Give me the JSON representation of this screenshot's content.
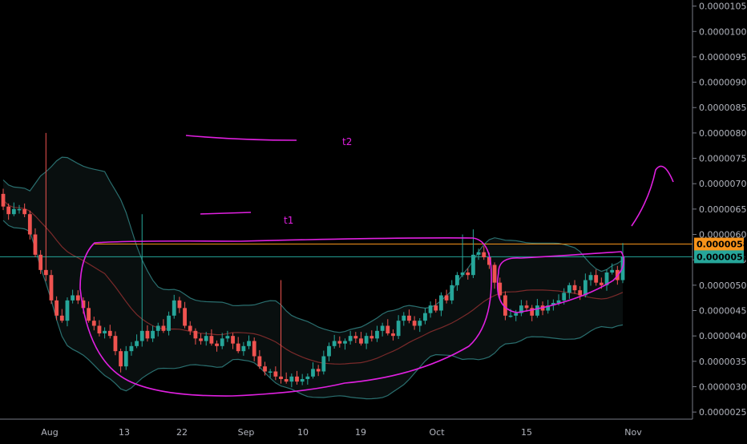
{
  "chart_data": {
    "type": "candlestick",
    "x_tick_labels": [
      "Aug",
      "13",
      "22",
      "Sep",
      "10",
      "19",
      "Oct",
      "15",
      "Nov"
    ],
    "y_tick_labels": [
      "0.00001050",
      "0.00001000",
      "0.00000950",
      "0.00000900",
      "0.00000850",
      "0.00000800",
      "0.00000750",
      "0.00000700",
      "0.00000650",
      "0.00000600",
      "0.00000550",
      "0.00000500",
      "0.00000450",
      "0.00000400",
      "0.00000350",
      "0.00000300",
      "0.00000250"
    ],
    "ylim": [
      2.36e-06,
      1.062e-05
    ],
    "price_lines": [
      {
        "value": 5.81e-06,
        "label": "0.00000581",
        "color": "#f7931a"
      },
      {
        "value": 5.56e-06,
        "label": "0.00000556",
        "color": "#26a69a"
      }
    ],
    "annotations": [
      {
        "text": "t2",
        "color": "#e020e0"
      },
      {
        "text": "t1",
        "color": "#e020e0"
      }
    ],
    "candles": {
      "open": [
        6.8e-06,
        6.55e-06,
        6.4e-06,
        6.5e-06,
        6.5e-06,
        6.4e-06,
        6e-06,
        5.6e-06,
        5.3e-06,
        5.2e-06,
        4.7e-06,
        4.4e-06,
        4.3e-06,
        4.7e-06,
        4.8e-06,
        4.7e-06,
        4.55e-06,
        4.3e-06,
        4.2e-06,
        4.05e-06,
        4.1e-06,
        4e-06,
        3.7e-06,
        3.4e-06,
        3.7e-06,
        3.8e-06,
        3.9e-06,
        4.1e-06,
        3.95e-06,
        4.1e-06,
        4.2e-06,
        4.1e-06,
        4.4e-06,
        4.7e-06,
        4.55e-06,
        4.2e-06,
        4.1e-06,
        3.95e-06,
        3.9e-06,
        4e-06,
        3.85e-06,
        3.8e-06,
        3.95e-06,
        4e-06,
        3.85e-06,
        3.7e-06,
        3.8e-06,
        3.9e-06,
        3.6e-06,
        3.4e-06,
        3.3e-06,
        3.3e-06,
        3.2e-06,
        3.15e-06,
        3.1e-06,
        3.2e-06,
        3.1e-06,
        3.15e-06,
        3.2e-06,
        3.35e-06,
        3.3e-06,
        3.6e-06,
        3.8e-06,
        3.9e-06,
        3.85e-06,
        3.9e-06,
        4e-06,
        3.95e-06,
        3.85e-06,
        4e-06,
        3.95e-06,
        4.1e-06,
        4.2e-06,
        4.05e-06,
        4e-06,
        4.3e-06,
        4.4e-06,
        4.3e-06,
        4.2e-06,
        4.3e-06,
        4.45e-06,
        4.6e-06,
        4.5e-06,
        4.8e-06,
        4.7e-06,
        5e-06,
        5.2e-06,
        5.25e-06,
        5.2e-06,
        5.6e-06,
        5.65e-06,
        5.55e-06,
        5.4e-06,
        5.05e-06,
        4.8e-06,
        4.4e-06,
        4.4e-06,
        4.45e-06,
        4.6e-06,
        4.55e-06,
        4.4e-06,
        4.6e-06,
        4.5e-06,
        4.6e-06,
        4.65e-06,
        4.7e-06,
        4.85e-06,
        5e-06,
        4.9e-06,
        4.8e-06,
        5.1e-06,
        5.2e-06,
        5.05e-06,
        5e-06,
        5.25e-06,
        5.3e-06,
        5.1e-06
      ],
      "close": [
        6.55e-06,
        6.4e-06,
        6.5e-06,
        6.5e-06,
        6.4e-06,
        6e-06,
        5.6e-06,
        5.3e-06,
        5.2e-06,
        4.7e-06,
        4.4e-06,
        4.3e-06,
        4.7e-06,
        4.8e-06,
        4.7e-06,
        4.55e-06,
        4.3e-06,
        4.2e-06,
        4.05e-06,
        4.1e-06,
        4e-06,
        3.7e-06,
        3.4e-06,
        3.7e-06,
        3.8e-06,
        3.9e-06,
        4.1e-06,
        3.95e-06,
        4.1e-06,
        4.2e-06,
        4.1e-06,
        4.4e-06,
        4.7e-06,
        4.55e-06,
        4.2e-06,
        4.1e-06,
        3.95e-06,
        3.9e-06,
        4e-06,
        3.85e-06,
        3.8e-06,
        3.95e-06,
        4e-06,
        3.85e-06,
        3.7e-06,
        3.8e-06,
        3.9e-06,
        3.6e-06,
        3.4e-06,
        3.3e-06,
        3.3e-06,
        3.2e-06,
        3.15e-06,
        3.1e-06,
        3.2e-06,
        3.1e-06,
        3.15e-06,
        3.2e-06,
        3.35e-06,
        3.3e-06,
        3.6e-06,
        3.8e-06,
        3.9e-06,
        3.85e-06,
        3.9e-06,
        4e-06,
        3.95e-06,
        3.85e-06,
        4e-06,
        3.95e-06,
        4.1e-06,
        4.2e-06,
        4.05e-06,
        4e-06,
        4.3e-06,
        4.4e-06,
        4.3e-06,
        4.2e-06,
        4.3e-06,
        4.45e-06,
        4.6e-06,
        4.5e-06,
        4.8e-06,
        4.7e-06,
        5e-06,
        5.2e-06,
        5.25e-06,
        5.2e-06,
        5.6e-06,
        5.65e-06,
        5.55e-06,
        5.4e-06,
        5.05e-06,
        4.8e-06,
        4.4e-06,
        4.4e-06,
        4.45e-06,
        4.6e-06,
        4.55e-06,
        4.4e-06,
        4.6e-06,
        4.5e-06,
        4.6e-06,
        4.65e-06,
        4.7e-06,
        4.85e-06,
        5e-06,
        4.9e-06,
        4.8e-06,
        5.1e-06,
        5.2e-06,
        5.05e-06,
        5e-06,
        5.25e-06,
        5.3e-06,
        5.1e-06,
        5.56e-06
      ]
    }
  }
}
